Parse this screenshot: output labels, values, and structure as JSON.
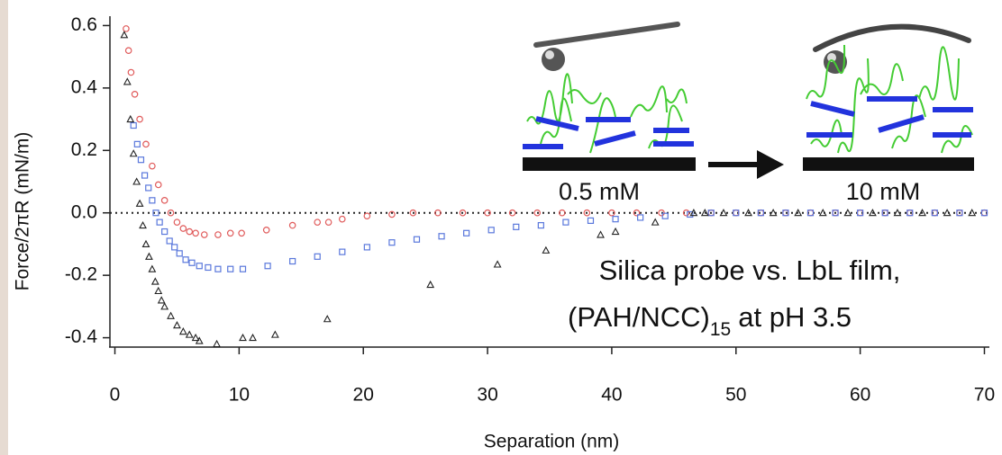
{
  "chart_data": {
    "type": "scatter",
    "xlabel": "Separation (nm)",
    "ylabel": "Force/2πR (mN/m)",
    "annotations": [
      "Silica probe vs. LbL film,",
      "(PAH/NCC)",
      "15",
      "at pH 3.5"
    ],
    "inset_labels": [
      "0.5 mM",
      "10 mM"
    ],
    "xlim": [
      -0.4,
      70.4
    ],
    "ylim": [
      -0.43,
      0.63
    ],
    "xticks": [
      0,
      10,
      20,
      30,
      40,
      50,
      60,
      70
    ],
    "yticks": [
      -0.4,
      -0.2,
      {
        "value": 0,
        "label": "0.0"
      },
      0.2,
      0.4,
      0.6
    ],
    "hline": 0,
    "series": [
      {
        "color": "#e05a5a",
        "marker": "circle",
        "x": [
          0.9,
          1.1,
          1.3,
          1.6,
          2.0,
          2.5,
          3.0,
          3.5,
          4.0,
          4.5,
          5.0,
          5.5,
          6.0,
          6.5,
          7.2,
          8.3,
          9.3,
          10.2,
          12.2,
          14.3,
          16.3,
          17.2,
          18.3,
          20.3,
          22.3,
          24,
          26,
          28,
          30,
          32,
          34,
          36,
          38,
          40,
          42,
          44,
          46,
          48,
          50,
          52,
          54,
          56,
          58,
          60,
          62,
          64,
          66,
          68,
          70
        ],
        "values": [
          0.59,
          0.52,
          0.45,
          0.38,
          0.3,
          0.22,
          0.15,
          0.09,
          0.04,
          0.0,
          -0.03,
          -0.05,
          -0.06,
          -0.065,
          -0.07,
          -0.07,
          -0.065,
          -0.065,
          -0.055,
          -0.04,
          -0.03,
          -0.03,
          -0.02,
          -0.01,
          -0.005,
          0,
          0,
          0,
          0,
          0,
          0,
          0,
          0,
          0,
          0,
          0,
          0,
          0,
          0,
          0,
          0,
          0,
          0,
          0,
          0,
          0,
          0,
          0,
          0
        ]
      },
      {
        "color": "#5a78dc",
        "marker": "square",
        "x": [
          1.5,
          1.8,
          2.1,
          2.4,
          2.7,
          3.0,
          3.3,
          3.6,
          4.0,
          4.4,
          4.8,
          5.2,
          5.7,
          6.2,
          6.8,
          7.5,
          8.3,
          9.3,
          10.3,
          12.3,
          14.3,
          16.3,
          18.3,
          20.3,
          22.3,
          24.3,
          26.3,
          28.3,
          30.3,
          32.3,
          34.3,
          36.3,
          38.3,
          40.3,
          42.3,
          44.3,
          46.3,
          48,
          50,
          52,
          54,
          56,
          58,
          60,
          62,
          64,
          66,
          68,
          70
        ],
        "values": [
          0.28,
          0.22,
          0.17,
          0.12,
          0.08,
          0.04,
          0.0,
          -0.03,
          -0.06,
          -0.09,
          -0.11,
          -0.13,
          -0.15,
          -0.16,
          -0.17,
          -0.175,
          -0.18,
          -0.18,
          -0.18,
          -0.17,
          -0.155,
          -0.14,
          -0.125,
          -0.11,
          -0.095,
          -0.085,
          -0.075,
          -0.065,
          -0.055,
          -0.045,
          -0.04,
          -0.03,
          -0.025,
          -0.02,
          -0.015,
          -0.01,
          -0.005,
          0,
          0,
          0,
          0,
          0,
          0,
          0,
          0,
          0,
          0,
          0,
          0
        ]
      },
      {
        "color": "#222222",
        "marker": "triangle",
        "x": [
          0.75,
          1.0,
          1.25,
          1.5,
          1.75,
          2.0,
          2.25,
          2.5,
          2.75,
          3.0,
          3.25,
          3.5,
          3.75,
          4.0,
          4.5,
          5.0,
          5.5,
          6.0,
          6.5,
          6.8,
          8.2,
          10.3,
          11.1,
          12.9,
          17.1,
          25.4,
          30.8,
          34.7,
          39.1,
          40.3,
          43.5,
          46.6,
          47.5,
          49,
          51,
          53,
          55,
          57,
          59,
          61,
          63,
          65,
          67,
          69
        ],
        "values": [
          0.57,
          0.42,
          0.3,
          0.19,
          0.1,
          0.03,
          -0.04,
          -0.1,
          -0.14,
          -0.18,
          -0.22,
          -0.25,
          -0.28,
          -0.3,
          -0.33,
          -0.36,
          -0.38,
          -0.39,
          -0.4,
          -0.41,
          -0.42,
          -0.4,
          -0.4,
          -0.39,
          -0.34,
          -0.23,
          -0.165,
          -0.12,
          -0.07,
          -0.06,
          -0.03,
          0.0,
          0,
          0,
          0,
          0,
          0,
          0,
          0,
          0,
          0,
          0,
          0,
          0
        ]
      }
    ]
  }
}
